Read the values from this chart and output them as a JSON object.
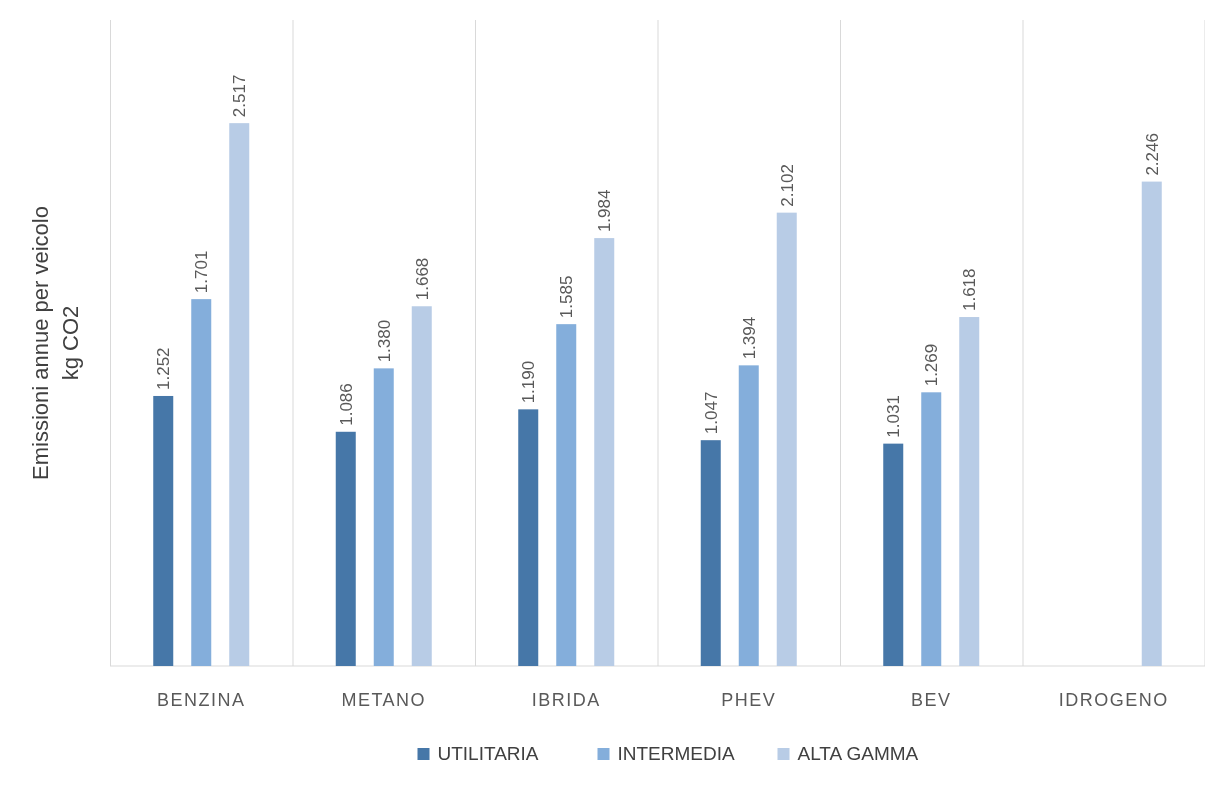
{
  "chart_data": {
    "type": "bar",
    "ylabel": "Emissioni annue per veicolo\nkg CO2",
    "categories": [
      "BENZINA",
      "METANO",
      "IBRIDA",
      "PHEV",
      "BEV",
      "IDROGENO"
    ],
    "series": [
      {
        "name": "UTILITARIA",
        "color": "#4677a8",
        "values": [
          1252,
          1086,
          1190,
          1047,
          1031,
          null
        ],
        "value_labels": [
          "1.252",
          "1.086",
          "1.190",
          "1.047",
          "1.031",
          null
        ]
      },
      {
        "name": "INTERMEDIA",
        "color": "#84aedb",
        "values": [
          1701,
          1380,
          1585,
          1394,
          1269,
          null
        ],
        "value_labels": [
          "1.701",
          "1.380",
          "1.585",
          "1.394",
          "1.269",
          null
        ]
      },
      {
        "name": "ALTA GAMMA",
        "color": "#b8cce6",
        "values": [
          2517,
          1668,
          1984,
          2102,
          1618,
          2246
        ],
        "value_labels": [
          "2.517",
          "1.668",
          "1.984",
          "2.102",
          "1.618",
          "2.246"
        ]
      }
    ],
    "grid": "x",
    "legend": "bottom"
  }
}
